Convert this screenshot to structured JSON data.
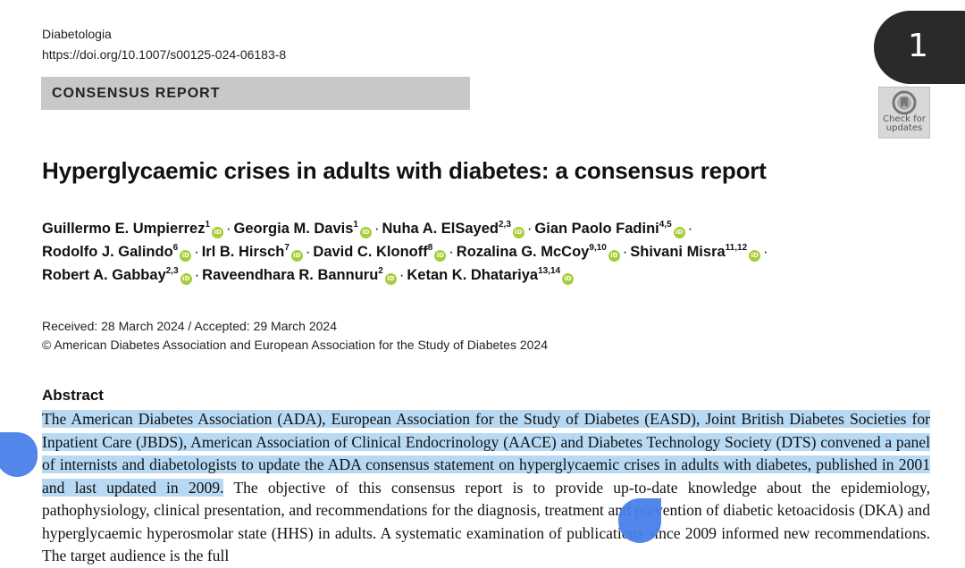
{
  "header": {
    "journal": "Diabetologia",
    "doi": "https://doi.org/10.1007/s00125-024-06183-8",
    "page_number": "1",
    "section_label": "CONSENSUS REPORT",
    "check_updates_line1": "Check for",
    "check_updates_line2": "updates"
  },
  "title": "Hyperglycaemic crises in adults with diabetes: a consensus report",
  "authors": [
    {
      "name": "Guillermo E. Umpierrez",
      "aff": "1"
    },
    {
      "name": "Georgia M. Davis",
      "aff": "1"
    },
    {
      "name": "Nuha A. ElSayed",
      "aff": "2,3"
    },
    {
      "name": "Gian Paolo Fadini",
      "aff": "4,5"
    },
    {
      "name": "Rodolfo J. Galindo",
      "aff": "6"
    },
    {
      "name": "Irl B. Hirsch",
      "aff": "7"
    },
    {
      "name": "David C. Klonoff",
      "aff": "8"
    },
    {
      "name": "Rozalina G. McCoy",
      "aff": "9,10"
    },
    {
      "name": "Shivani Misra",
      "aff": "11,12"
    },
    {
      "name": "Robert A. Gabbay",
      "aff": "2,3"
    },
    {
      "name": "Raveendhara R. Bannuru",
      "aff": "2"
    },
    {
      "name": "Ketan K. Dhatariya",
      "aff": "13,14"
    }
  ],
  "orcid_label": "iD",
  "author_separator": "·",
  "dates": "Received: 28 March 2024 / Accepted: 29 March 2024",
  "copyright": "© American Diabetes Association and European Association for the Study of Diabetes 2024",
  "abstract": {
    "heading": "Abstract",
    "selected_text": "The American Diabetes Association (ADA), European Association for the Study of Diabetes (EASD), Joint British Diabetes Societies for Inpatient Care (JBDS), American Association of Clinical Endocrinology (AACE) and Diabetes Technology Society (DTS) convened a panel of internists and diabetologists to update the ADA consensus statement on hyperglycaemic crises in adults with diabetes, published in 2001 and last updated in 2009.",
    "rest_text": " The objective of this consensus report is to provide up-to-date knowledge about the epidemiology, pathophysiology, clinical presentation, and recommendations for the diagnosis, treatment and prevention of diabetic ketoacidosis (DKA) and hyperglycaemic hyperosmolar state (HHS) in adults. A systematic examination of publications since 2009 informed new recommendations. The target audience is the full"
  },
  "colors": {
    "selection": "#b7d9f3",
    "handle": "#4a80ea",
    "banner": "#c8c8c8",
    "orcid": "#a6ce39"
  }
}
